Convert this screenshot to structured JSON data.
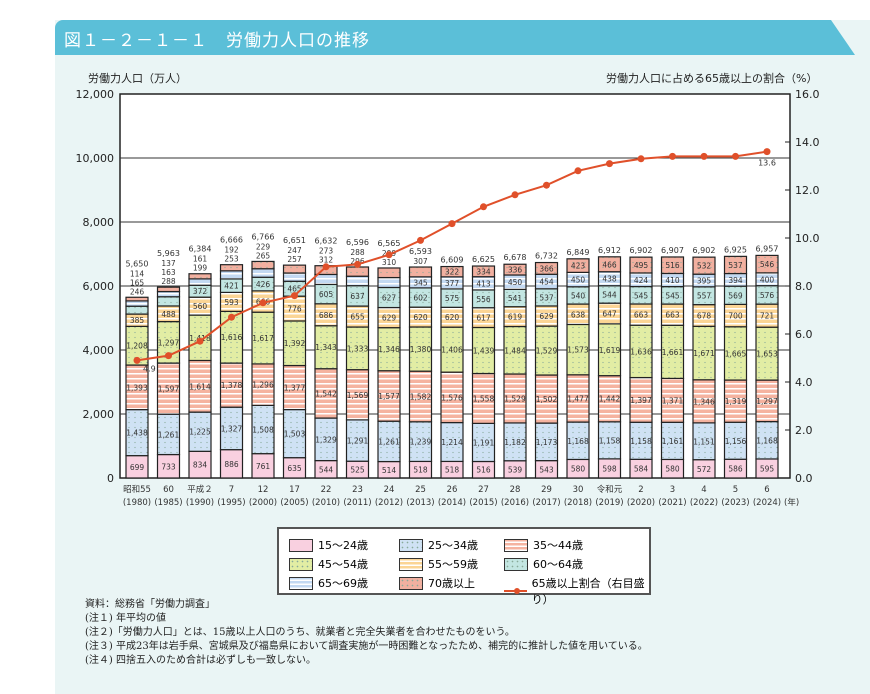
{
  "header": {
    "title": "図１－２－１－１　労働力人口の推移"
  },
  "chart_data": {
    "type": "bar",
    "stacked": true,
    "title": "労働力人口の推移",
    "ylabel": "労働力人口（万人）",
    "y2label": "労働力人口に占める65歳以上の割合（%）",
    "ylim": [
      0,
      12000
    ],
    "y2lim": [
      0,
      16
    ],
    "yticks": [
      "0",
      "2,000",
      "4,000",
      "6,000",
      "8,000",
      "10,000",
      "12,000"
    ],
    "y2ticks": [
      "0.0",
      "2.0",
      "4.0",
      "6.0",
      "8.0",
      "10.0",
      "12.0",
      "14.0",
      "16.0"
    ],
    "categories": [
      "昭和55",
      "60",
      "平成２",
      "7",
      "12",
      "17",
      "22",
      "23",
      "24",
      "25",
      "26",
      "27",
      "28",
      "29",
      "30",
      "令和元",
      "2",
      "3",
      "4",
      "5",
      "6"
    ],
    "years": [
      "(1980)",
      "(1985)",
      "(1990)",
      "(1995)",
      "(2000)",
      "(2005)",
      "(2010)",
      "(2011)",
      "(2012)",
      "(2013)",
      "(2014)",
      "(2015)",
      "(2016)",
      "(2017)",
      "(2018)",
      "(2019)",
      "(2020)",
      "(2021)",
      "(2022)",
      "(2023)",
      "(2024)"
    ],
    "x_unit": "(年)",
    "totals": [
      "5,650",
      "5,963",
      "6,384",
      "6,666",
      "6,766",
      "6,651",
      "6,632",
      "6,596",
      "6,565",
      "6,593",
      "6,609",
      "6,625",
      "6,678",
      "6,732",
      "6,849",
      "6,912",
      "6,902",
      "6,907",
      "6,902",
      "6,925",
      "6,957"
    ],
    "series": [
      {
        "name": "15～24歳",
        "color": "#f9d0e0",
        "values": [
          699,
          733,
          834,
          886,
          761,
          635,
          544,
          525,
          514,
          518,
          518,
          516,
          539,
          543,
          580,
          598,
          584,
          580,
          572,
          586,
          595
        ]
      },
      {
        "name": "25～34歳",
        "color": "#cfe2f4",
        "values": [
          1438,
          1261,
          1225,
          1327,
          1508,
          1503,
          1329,
          1291,
          1261,
          1239,
          1214,
          1191,
          1182,
          1173,
          1168,
          1158,
          1158,
          1161,
          1151,
          1156,
          1168
        ]
      },
      {
        "name": "35～44歳",
        "color": "#f5b3a0",
        "values": [
          1393,
          1597,
          1614,
          1378,
          1296,
          1377,
          1542,
          1569,
          1577,
          1582,
          1576,
          1558,
          1529,
          1502,
          1477,
          1442,
          1397,
          1371,
          1346,
          1319,
          1297
        ]
      },
      {
        "name": "45～54歳",
        "color": "#e2eda4",
        "values": [
          1208,
          1297,
          1418,
          1616,
          1617,
          1392,
          1343,
          1333,
          1346,
          1380,
          1406,
          1439,
          1484,
          1529,
          1573,
          1619,
          1636,
          1661,
          1671,
          1665,
          1653
        ]
      },
      {
        "name": "55～59歳",
        "color": "#fbd595",
        "values": [
          385,
          488,
          560,
          593,
          666,
          776,
          686,
          655,
          629,
          620,
          620,
          617,
          619,
          629,
          638,
          647,
          663,
          663,
          678,
          700,
          721
        ]
      },
      {
        "name": "60～64歳",
        "color": "#c3e6e2",
        "values": [
          246,
          288,
          372,
          421,
          426,
          465,
          605,
          637,
          627,
          602,
          575,
          556,
          541,
          537,
          540,
          544,
          545,
          545,
          557,
          569,
          576
        ]
      },
      {
        "name": "65～69歳",
        "color": "#c3d9f2",
        "values": [
          165,
          163,
          199,
          253,
          265,
          257,
          312,
          296,
          310,
          345,
          377,
          413,
          450,
          454,
          450,
          438,
          424,
          410,
          395,
          394,
          400
        ]
      },
      {
        "name": "70歳以上",
        "color": "#f2b0a0",
        "values": [
          114,
          137,
          161,
          192,
          229,
          247,
          273,
          288,
          299,
          307,
          322,
          334,
          336,
          366,
          423,
          466,
          495,
          516,
          532,
          537,
          546
        ]
      }
    ],
    "line": {
      "name": "65歳以上割合（右目盛り）",
      "color": "#e0502a",
      "values": [
        4.9,
        5.1,
        5.7,
        6.7,
        7.3,
        7.6,
        8.8,
        8.9,
        9.3,
        9.9,
        10.6,
        11.3,
        11.8,
        12.2,
        12.8,
        13.1,
        13.3,
        13.4,
        13.4,
        13.4,
        13.6
      ],
      "labels": {
        "first": "4.9",
        "last": "13.6"
      }
    },
    "grid": true,
    "legend": "bottom-center"
  },
  "notes": [
    "資料：総務省「労働力調査」",
    "(注１) 年平均の値",
    "(注２)「労働力人口」とは、15歳以上人口のうち、就業者と完全失業者を合わせたものをいう。",
    "(注３) 平成23年は岩手県、宮城県及び福島県において調査実施が一時困難となったため、補完的に推計した値を用いている。",
    "(注４) 四捨五入のため合計は必ずしも一致しない。"
  ]
}
